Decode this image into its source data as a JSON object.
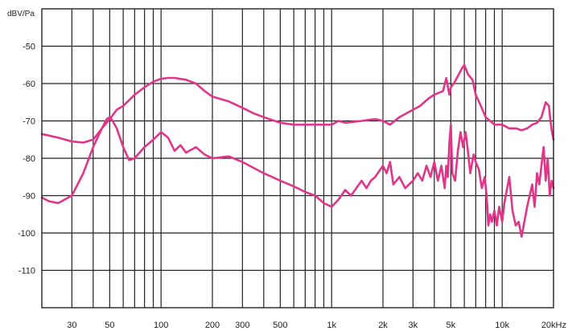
{
  "chart_data": {
    "type": "line",
    "xscale": "log",
    "xlim": [
      20,
      20000
    ],
    "ylim": [
      -120,
      -40
    ],
    "grid": true,
    "yunit": "dBV/Pa",
    "xunit": "Hz",
    "x_ticks": [
      {
        "value": 30,
        "label": "30"
      },
      {
        "value": 50,
        "label": "50"
      },
      {
        "value": 100,
        "label": "100"
      },
      {
        "value": 200,
        "label": "200"
      },
      {
        "value": 300,
        "label": "300"
      },
      {
        "value": 500,
        "label": "500"
      },
      {
        "value": 1000,
        "label": "1k"
      },
      {
        "value": 2000,
        "label": "2k"
      },
      {
        "value": 3000,
        "label": "3k"
      },
      {
        "value": 5000,
        "label": "5k"
      },
      {
        "value": 10000,
        "label": "10k"
      },
      {
        "value": 20000,
        "label": "20kHz"
      }
    ],
    "y_ticks": [
      {
        "value": -50,
        "label": "-50"
      },
      {
        "value": -60,
        "label": "-60"
      },
      {
        "value": -70,
        "label": "-70"
      },
      {
        "value": -80,
        "label": "-80"
      },
      {
        "value": -90,
        "label": "-90"
      },
      {
        "value": -100,
        "label": "-100"
      },
      {
        "value": -110,
        "label": "-110"
      }
    ],
    "series_color": "#e0358a",
    "series": [
      {
        "x": [
          20,
          25,
          30,
          35,
          40,
          45,
          50,
          55,
          60,
          70,
          80,
          90,
          100,
          110,
          120,
          140,
          160,
          180,
          200,
          250,
          300,
          350,
          400,
          500,
          600,
          700,
          800,
          1000,
          1100,
          1200,
          1500,
          1800,
          2000,
          2200,
          2500,
          3000,
          3300,
          3700,
          4000,
          4500,
          4700,
          4900,
          5000,
          5200,
          5500,
          5800,
          6000,
          6300,
          6700,
          7000,
          7500,
          8000,
          9000,
          10000,
          11000,
          12000,
          13000,
          14000,
          15000,
          16000,
          17000,
          18000,
          18800,
          19200,
          19600,
          20000
        ],
        "y": [
          -73.5,
          -74.5,
          -75.5,
          -75.8,
          -75,
          -72,
          -69.5,
          -67,
          -66,
          -63,
          -61,
          -59.5,
          -58.7,
          -58.5,
          -58.5,
          -59,
          -60,
          -62,
          -63.5,
          -64.8,
          -66.5,
          -68,
          -69,
          -70.5,
          -71,
          -71,
          -71,
          -71,
          -70,
          -70.5,
          -70,
          -69.5,
          -70,
          -71,
          -69,
          -67,
          -66,
          -64,
          -63,
          -62,
          -58.5,
          -63,
          -61,
          -60,
          -58,
          -56,
          -55,
          -57.5,
          -59,
          -63,
          -66,
          -69,
          -71,
          -71,
          -72,
          -72,
          -72.5,
          -72,
          -71,
          -70.5,
          -69,
          -65,
          -66,
          -70,
          -73,
          -75
        ]
      },
      {
        "x": [
          20,
          22,
          25,
          30,
          35,
          40,
          45,
          48,
          50,
          52,
          55,
          60,
          65,
          70,
          80,
          90,
          100,
          110,
          120,
          130,
          140,
          160,
          180,
          200,
          250,
          300,
          400,
          500,
          600,
          700,
          800,
          900,
          1000,
          1100,
          1200,
          1300,
          1500,
          1600,
          1700,
          1800,
          2000,
          2100,
          2200,
          2300,
          2500,
          2700,
          3000,
          3200,
          3400,
          3600,
          3800,
          4000,
          4200,
          4400,
          4600,
          4700,
          4800,
          4900,
          5000,
          5100,
          5300,
          5500,
          5700,
          5900,
          6100,
          6300,
          6500,
          6800,
          7000,
          7300,
          7600,
          7900,
          8100,
          8300,
          8500,
          8700,
          9000,
          9300,
          9600,
          10000,
          10300,
          10600,
          11000,
          11500,
          12000,
          12500,
          13000,
          14000,
          15000,
          15500,
          16000,
          16500,
          17000,
          17500,
          18000,
          18500,
          19000,
          19500,
          20000
        ],
        "y": [
          -90.5,
          -91.5,
          -92,
          -90,
          -84,
          -77,
          -72,
          -69.5,
          -69,
          -70,
          -72,
          -77,
          -80.5,
          -80,
          -77,
          -75,
          -73,
          -74.5,
          -78,
          -76.5,
          -78.5,
          -77,
          -79,
          -80,
          -79.5,
          -81,
          -84,
          -86,
          -87.5,
          -89,
          -90,
          -92,
          -93,
          -91,
          -88.5,
          -90,
          -86,
          -88,
          -86,
          -85,
          -82,
          -84,
          -81,
          -87,
          -85,
          -88,
          -86,
          -84,
          -86,
          -82,
          -85,
          -81,
          -86,
          -82,
          -88,
          -82,
          -85,
          -76,
          -71,
          -84,
          -86,
          -78,
          -73,
          -77,
          -73,
          -78,
          -84,
          -79,
          -81,
          -83,
          -88,
          -85,
          -90,
          -98,
          -95,
          -97,
          -94,
          -98,
          -93,
          -97,
          -92,
          -89,
          -85,
          -94,
          -98,
          -97,
          -101,
          -93,
          -87,
          -93,
          -84,
          -87,
          -82,
          -77,
          -86,
          -80,
          -90,
          -86,
          -88
        ]
      }
    ]
  }
}
